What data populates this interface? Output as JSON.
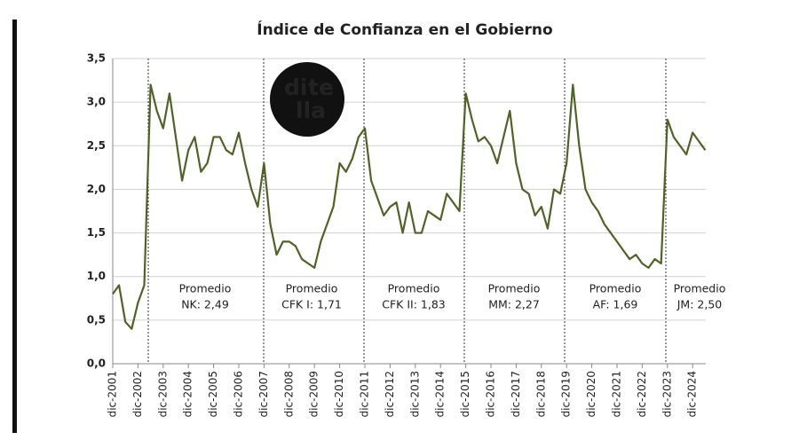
{
  "chart_data": {
    "type": "line",
    "title": "Índice de Confianza en el Gobierno",
    "logo": [
      "di",
      "te",
      "lla"
    ],
    "categories": [
      "dic-2001",
      null,
      null,
      null,
      "dic-2002",
      null,
      null,
      null,
      "dic-2003",
      null,
      null,
      null,
      "dic-2004",
      null,
      null,
      null,
      "dic-2005",
      null,
      null,
      null,
      "dic-2006",
      null,
      null,
      null,
      "dic-2007",
      null,
      null,
      null,
      "dic-2008",
      null,
      null,
      null,
      "dic-2009",
      null,
      null,
      null,
      "dic-2010",
      null,
      null,
      null,
      "dic-2011",
      null,
      null,
      null,
      "dic-2012",
      null,
      null,
      null,
      "dic-2013",
      null,
      null,
      null,
      "dic-2014",
      null,
      null,
      null,
      "dic-2015",
      null,
      null,
      null,
      "dic-2016",
      null,
      null,
      null,
      "dic-2017",
      null,
      null,
      null,
      "dic-2018",
      null,
      null,
      null,
      "dic-2019",
      null,
      null,
      null,
      "dic-2020",
      null,
      null,
      null,
      "dic-2021",
      null,
      null,
      null,
      "dic-2022",
      null,
      null,
      null,
      "dic-2023",
      null,
      null,
      null,
      "dic-2024",
      null,
      null
    ],
    "series": [
      {
        "name": "Índice de Confianza en el Gobierno",
        "color": "#4f6228",
        "values": [
          0.8,
          0.9,
          0.48,
          0.4,
          0.7,
          0.9,
          3.2,
          2.9,
          2.7,
          3.1,
          2.6,
          2.1,
          2.45,
          2.6,
          2.2,
          2.3,
          2.6,
          2.6,
          2.45,
          2.4,
          2.65,
          2.3,
          2.0,
          1.8,
          2.3,
          1.6,
          1.25,
          1.4,
          1.4,
          1.35,
          1.2,
          1.15,
          1.1,
          1.4,
          1.6,
          1.8,
          2.3,
          2.2,
          2.35,
          2.6,
          2.7,
          2.1,
          1.9,
          1.7,
          1.8,
          1.85,
          1.5,
          1.85,
          1.5,
          1.5,
          1.75,
          1.7,
          1.65,
          1.95,
          1.85,
          1.75,
          3.1,
          2.8,
          2.55,
          2.6,
          2.5,
          2.3,
          2.6,
          2.9,
          2.3,
          2.0,
          1.95,
          1.7,
          1.8,
          1.55,
          2.0,
          1.95,
          2.3,
          3.2,
          2.5,
          2.0,
          1.85,
          1.75,
          1.6,
          1.5,
          1.4,
          1.3,
          1.2,
          1.25,
          1.15,
          1.1,
          1.2,
          1.15,
          2.8,
          2.6,
          2.5,
          2.4,
          2.65,
          2.55,
          2.45
        ]
      }
    ],
    "ylim": [
      0,
      3.5
    ],
    "yticks": [
      {
        "value": 0,
        "label": "0,0"
      },
      {
        "value": 0.5,
        "label": "0,5"
      },
      {
        "value": 1,
        "label": "1,0"
      },
      {
        "value": 1.5,
        "label": "1,5"
      },
      {
        "value": 2,
        "label": "2,0"
      },
      {
        "value": 2.5,
        "label": "2,5"
      },
      {
        "value": 3,
        "label": "3,0"
      },
      {
        "value": 3.5,
        "label": "3,5"
      }
    ],
    "grid": true,
    "annotations": [
      [
        "Promedio",
        "NK: 2,49"
      ],
      [
        "Promedio",
        "CFK I: 1,71"
      ],
      [
        "Promedio",
        "CFK II: 1,83"
      ],
      [
        "Promedio",
        "MM: 2,27"
      ],
      [
        "Promedio",
        "AF: 1,69"
      ],
      [
        "Promedio",
        "JM: 2,50"
      ]
    ]
  }
}
